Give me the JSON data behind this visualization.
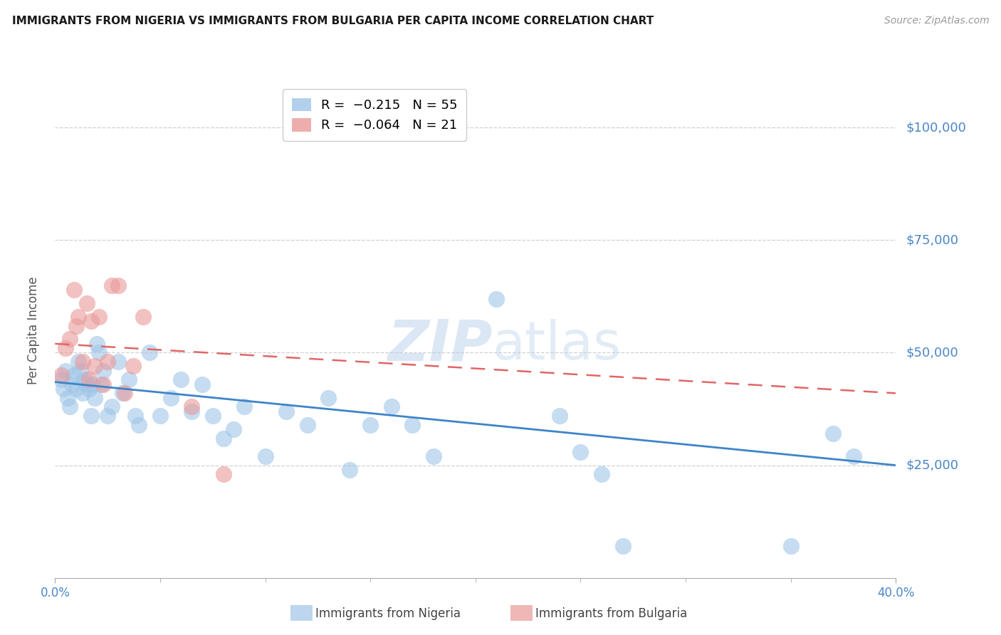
{
  "title": "IMMIGRANTS FROM NIGERIA VS IMMIGRANTS FROM BULGARIA PER CAPITA INCOME CORRELATION CHART",
  "source": "Source: ZipAtlas.com",
  "ylabel": "Per Capita Income",
  "xlim": [
    0.0,
    40.0
  ],
  "ylim": [
    0,
    110000
  ],
  "yticks": [
    25000,
    50000,
    75000,
    100000
  ],
  "ytick_labels": [
    "$25,000",
    "$50,000",
    "$75,000",
    "$100,000"
  ],
  "watermark_zip": "ZIP",
  "watermark_atlas": "atlas",
  "nigeria_color": "#9fc5e8",
  "bulgaria_color": "#ea9999",
  "nigeria_line_color": "#3d85c8",
  "bulgaria_line_color": "#e06666",
  "grid_color": "#d0d0d0",
  "title_color": "#1a1a1a",
  "right_axis_color": "#4a86c8",
  "nigeria_scatter_x": [
    0.3,
    0.4,
    0.5,
    0.6,
    0.7,
    0.8,
    0.9,
    1.0,
    1.1,
    1.2,
    1.3,
    1.4,
    1.5,
    1.6,
    1.7,
    1.8,
    1.9,
    2.0,
    2.1,
    2.2,
    2.3,
    2.5,
    2.7,
    3.0,
    3.2,
    3.5,
    3.8,
    4.0,
    4.5,
    5.0,
    5.5,
    6.0,
    6.5,
    7.0,
    7.5,
    8.0,
    8.5,
    9.0,
    10.0,
    11.0,
    12.0,
    13.0,
    14.0,
    15.0,
    16.0,
    17.0,
    18.0,
    21.0,
    24.0,
    25.0,
    26.0,
    27.0,
    35.0,
    37.0,
    38.0
  ],
  "nigeria_scatter_y": [
    44000,
    42000,
    46000,
    40000,
    38000,
    43000,
    45000,
    42000,
    48000,
    46000,
    41000,
    44000,
    43000,
    42000,
    36000,
    43000,
    40000,
    52000,
    50000,
    43000,
    46000,
    36000,
    38000,
    48000,
    41000,
    44000,
    36000,
    34000,
    50000,
    36000,
    40000,
    44000,
    37000,
    43000,
    36000,
    31000,
    33000,
    38000,
    27000,
    37000,
    34000,
    40000,
    24000,
    34000,
    38000,
    34000,
    27000,
    62000,
    36000,
    28000,
    23000,
    7000,
    7000,
    32000,
    27000
  ],
  "bulgaria_scatter_x": [
    0.3,
    0.5,
    0.7,
    0.9,
    1.0,
    1.1,
    1.3,
    1.5,
    1.6,
    1.7,
    1.9,
    2.1,
    2.3,
    2.5,
    2.7,
    3.0,
    3.3,
    3.7,
    4.2,
    6.5,
    8.0
  ],
  "bulgaria_scatter_y": [
    45000,
    51000,
    53000,
    64000,
    56000,
    58000,
    48000,
    61000,
    44000,
    57000,
    47000,
    58000,
    43000,
    48000,
    65000,
    65000,
    41000,
    47000,
    58000,
    38000,
    23000
  ],
  "nigeria_regline_x": [
    0,
    40
  ],
  "nigeria_regline_y": [
    43500,
    25000
  ],
  "bulgaria_regline_x": [
    0,
    40
  ],
  "bulgaria_regline_y": [
    52000,
    41000
  ]
}
